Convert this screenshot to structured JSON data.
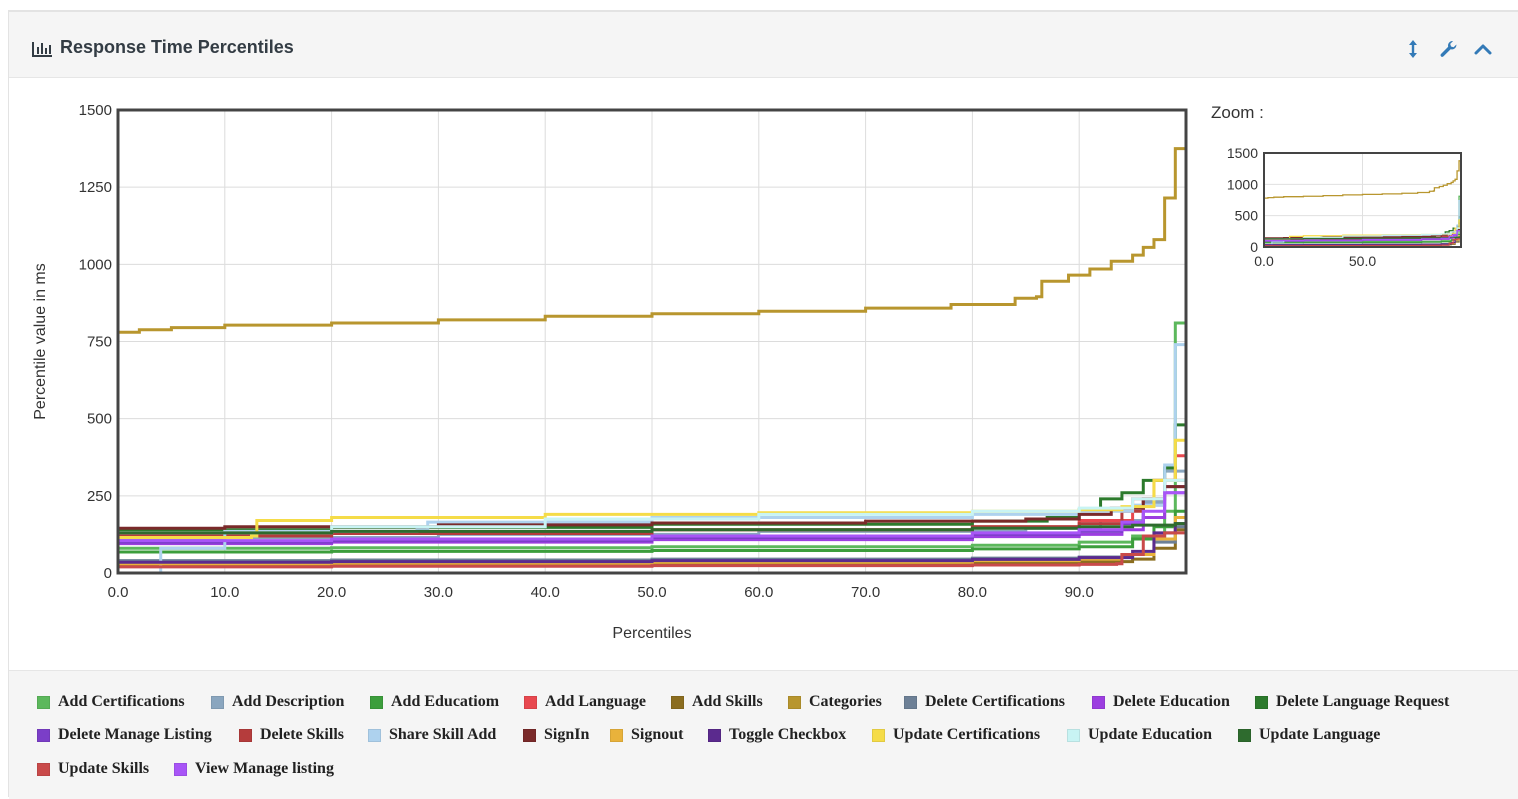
{
  "panel": {
    "title": "Response Time Percentiles",
    "icons": [
      "bar-chart-icon",
      "resize-vertical-icon",
      "wrench-icon",
      "chevron-up-icon"
    ]
  },
  "zoom": {
    "label": "Zoom :"
  },
  "colors": {
    "title": "#333c44",
    "accent": "#337ab7",
    "header_bg": "#f5f5f5"
  },
  "chart_data": {
    "type": "line",
    "title": "",
    "xlabel": "Percentiles",
    "ylabel": "Percentile value in ms",
    "xlim": [
      0,
      100
    ],
    "ylim": [
      0,
      1500
    ],
    "xticks": [
      "0.0",
      "10.0",
      "20.0",
      "30.0",
      "40.0",
      "50.0",
      "60.0",
      "70.0",
      "80.0",
      "90.0"
    ],
    "yticks": [
      "0",
      "250",
      "500",
      "750",
      "1000",
      "1250",
      "1500"
    ],
    "grid": true,
    "legend_position": "bottom",
    "zoom_chart": {
      "xticks": [
        "0.0",
        "50.0"
      ],
      "yticks": [
        "0",
        "500",
        "1000",
        "1500"
      ]
    },
    "series": [
      {
        "name": "Add Certifications",
        "color": "#5cb85c",
        "points": [
          [
            0,
            80
          ],
          [
            20,
            82
          ],
          [
            50,
            85
          ],
          [
            80,
            90
          ],
          [
            90,
            100
          ],
          [
            95,
            120
          ],
          [
            98,
            200
          ],
          [
            99,
            810
          ],
          [
            100,
            810
          ]
        ]
      },
      {
        "name": "Add Description",
        "color": "#8aa6bf",
        "points": [
          [
            0,
            110
          ],
          [
            10,
            115
          ],
          [
            30,
            125
          ],
          [
            60,
            135
          ],
          [
            85,
            145
          ],
          [
            92,
            170
          ],
          [
            96,
            230
          ],
          [
            98,
            330
          ],
          [
            100,
            360
          ]
        ]
      },
      {
        "name": "Add Educatiom",
        "color": "#3c9e3c",
        "points": [
          [
            0,
            68
          ],
          [
            20,
            70
          ],
          [
            50,
            73
          ],
          [
            80,
            78
          ],
          [
            90,
            85
          ],
          [
            95,
            110
          ],
          [
            97,
            150
          ],
          [
            99,
            200
          ],
          [
            100,
            200
          ]
        ]
      },
      {
        "name": "Add Language",
        "color": "#e8484f",
        "points": [
          [
            0,
            120
          ],
          [
            20,
            128
          ],
          [
            50,
            140
          ],
          [
            80,
            150
          ],
          [
            90,
            170
          ],
          [
            95,
            240
          ],
          [
            97,
            300
          ],
          [
            99,
            380
          ],
          [
            100,
            380
          ]
        ]
      },
      {
        "name": "Add Skills",
        "color": "#8b6d1f",
        "points": [
          [
            0,
            25
          ],
          [
            20,
            27
          ],
          [
            50,
            30
          ],
          [
            80,
            33
          ],
          [
            90,
            37
          ],
          [
            95,
            45
          ],
          [
            97,
            80
          ],
          [
            99,
            140
          ],
          [
            100,
            140
          ]
        ]
      },
      {
        "name": "Categories",
        "color": "#b8962e",
        "points": [
          [
            0,
            780
          ],
          [
            2,
            788
          ],
          [
            5,
            795
          ],
          [
            10,
            803
          ],
          [
            20,
            810
          ],
          [
            30,
            820
          ],
          [
            40,
            832
          ],
          [
            50,
            840
          ],
          [
            60,
            848
          ],
          [
            70,
            858
          ],
          [
            78,
            870
          ],
          [
            84,
            890
          ],
          [
            86,
            895
          ],
          [
            86.5,
            945
          ],
          [
            89,
            965
          ],
          [
            91,
            985
          ],
          [
            93,
            1010
          ],
          [
            95,
            1030
          ],
          [
            96,
            1055
          ],
          [
            97,
            1080
          ],
          [
            98,
            1215
          ],
          [
            99,
            1375
          ],
          [
            100,
            1375
          ]
        ]
      },
      {
        "name": "Delete Certifications",
        "color": "#6d8096",
        "points": [
          [
            0,
            40
          ],
          [
            20,
            42
          ],
          [
            50,
            45
          ],
          [
            80,
            48
          ],
          [
            90,
            52
          ],
          [
            95,
            60
          ],
          [
            97,
            100
          ],
          [
            99,
            150
          ],
          [
            100,
            150
          ]
        ]
      },
      {
        "name": "Delete Education",
        "color": "#9c3ee0",
        "points": [
          [
            0,
            95
          ],
          [
            20,
            100
          ],
          [
            50,
            108
          ],
          [
            80,
            118
          ],
          [
            90,
            125
          ],
          [
            94,
            140
          ],
          [
            96,
            180
          ],
          [
            98,
            260
          ],
          [
            100,
            300
          ]
        ]
      },
      {
        "name": "Delete Language Request",
        "color": "#2c7a2c",
        "points": [
          [
            0,
            140
          ],
          [
            20,
            148
          ],
          [
            50,
            158
          ],
          [
            80,
            168
          ],
          [
            87,
            180
          ],
          [
            90,
            205
          ],
          [
            92,
            240
          ],
          [
            94,
            260
          ],
          [
            96,
            300
          ],
          [
            98,
            340
          ],
          [
            99,
            480
          ],
          [
            100,
            480
          ]
        ]
      },
      {
        "name": "Delete Manage Listing",
        "color": "#7b3ec8",
        "points": [
          [
            0,
            100
          ],
          [
            20,
            105
          ],
          [
            50,
            115
          ],
          [
            80,
            125
          ],
          [
            90,
            135
          ],
          [
            94,
            160
          ],
          [
            96,
            220
          ],
          [
            98,
            280
          ],
          [
            100,
            320
          ]
        ]
      },
      {
        "name": "Delete Skills",
        "color": "#b53c3c",
        "points": [
          [
            0,
            120
          ],
          [
            20,
            128
          ],
          [
            50,
            140
          ],
          [
            80,
            150
          ],
          [
            90,
            160
          ],
          [
            94,
            200
          ],
          [
            96,
            240
          ],
          [
            98,
            300
          ],
          [
            100,
            340
          ]
        ]
      },
      {
        "name": "Share Skill Add",
        "color": "#aed2ee",
        "points": [
          [
            0,
            0
          ],
          [
            3.8,
            0
          ],
          [
            4,
            80
          ],
          [
            10,
            135
          ],
          [
            28,
            140
          ],
          [
            29,
            165
          ],
          [
            50,
            180
          ],
          [
            80,
            190
          ],
          [
            90,
            200
          ],
          [
            95,
            220
          ],
          [
            98,
            350
          ],
          [
            99,
            740
          ],
          [
            100,
            740
          ]
        ]
      },
      {
        "name": "SignIn",
        "color": "#7a2a2a",
        "points": [
          [
            0,
            145
          ],
          [
            10,
            150
          ],
          [
            30,
            156
          ],
          [
            50,
            162
          ],
          [
            70,
            168
          ],
          [
            85,
            175
          ],
          [
            90,
            190
          ],
          [
            93,
            210
          ],
          [
            96,
            240
          ],
          [
            98,
            280
          ],
          [
            100,
            300
          ]
        ]
      },
      {
        "name": "Signout",
        "color": "#e9b23b",
        "points": [
          [
            0,
            30
          ],
          [
            20,
            32
          ],
          [
            50,
            35
          ],
          [
            80,
            40
          ],
          [
            90,
            45
          ],
          [
            94,
            60
          ],
          [
            97,
            110
          ],
          [
            99,
            180
          ],
          [
            100,
            180
          ]
        ]
      },
      {
        "name": "Toggle Checkbox",
        "color": "#5b2a8e",
        "points": [
          [
            0,
            35
          ],
          [
            20,
            37
          ],
          [
            50,
            40
          ],
          [
            80,
            44
          ],
          [
            90,
            50
          ],
          [
            95,
            70
          ],
          [
            97,
            130
          ],
          [
            99,
            160
          ],
          [
            100,
            160
          ]
        ]
      },
      {
        "name": "Update Certifications",
        "color": "#f5dc48",
        "points": [
          [
            0,
            115
          ],
          [
            12.5,
            120
          ],
          [
            13,
            170
          ],
          [
            20,
            180
          ],
          [
            40,
            190
          ],
          [
            60,
            195
          ],
          [
            80,
            200
          ],
          [
            90,
            205
          ],
          [
            94,
            215
          ],
          [
            97,
            300
          ],
          [
            99,
            430
          ],
          [
            100,
            430
          ]
        ]
      },
      {
        "name": "Update Education",
        "color": "#c8f4f4",
        "points": [
          [
            0,
            130
          ],
          [
            20,
            150
          ],
          [
            40,
            175
          ],
          [
            60,
            190
          ],
          [
            80,
            200
          ],
          [
            90,
            210
          ],
          [
            95,
            240
          ],
          [
            98,
            300
          ],
          [
            100,
            330
          ]
        ]
      },
      {
        "name": "Update Language",
        "color": "#2e6b2e",
        "points": [
          [
            0,
            130
          ],
          [
            20,
            135
          ],
          [
            50,
            140
          ],
          [
            80,
            145
          ],
          [
            90,
            150
          ],
          [
            95,
            155
          ],
          [
            99,
            160
          ],
          [
            100,
            160
          ]
        ]
      },
      {
        "name": "Update Skills",
        "color": "#c94a4a",
        "points": [
          [
            0,
            20
          ],
          [
            20,
            22
          ],
          [
            50,
            24
          ],
          [
            80,
            26
          ],
          [
            90,
            28
          ],
          [
            93.5,
            30
          ],
          [
            94,
            60
          ],
          [
            96,
            120
          ],
          [
            98,
            130
          ],
          [
            100,
            130
          ]
        ]
      },
      {
        "name": "View Manage listing",
        "color": "#a855f7",
        "points": [
          [
            0,
            105
          ],
          [
            20,
            110
          ],
          [
            50,
            120
          ],
          [
            80,
            130
          ],
          [
            90,
            140
          ],
          [
            94,
            165
          ],
          [
            96,
            200
          ],
          [
            98,
            260
          ],
          [
            100,
            290
          ]
        ]
      }
    ]
  }
}
